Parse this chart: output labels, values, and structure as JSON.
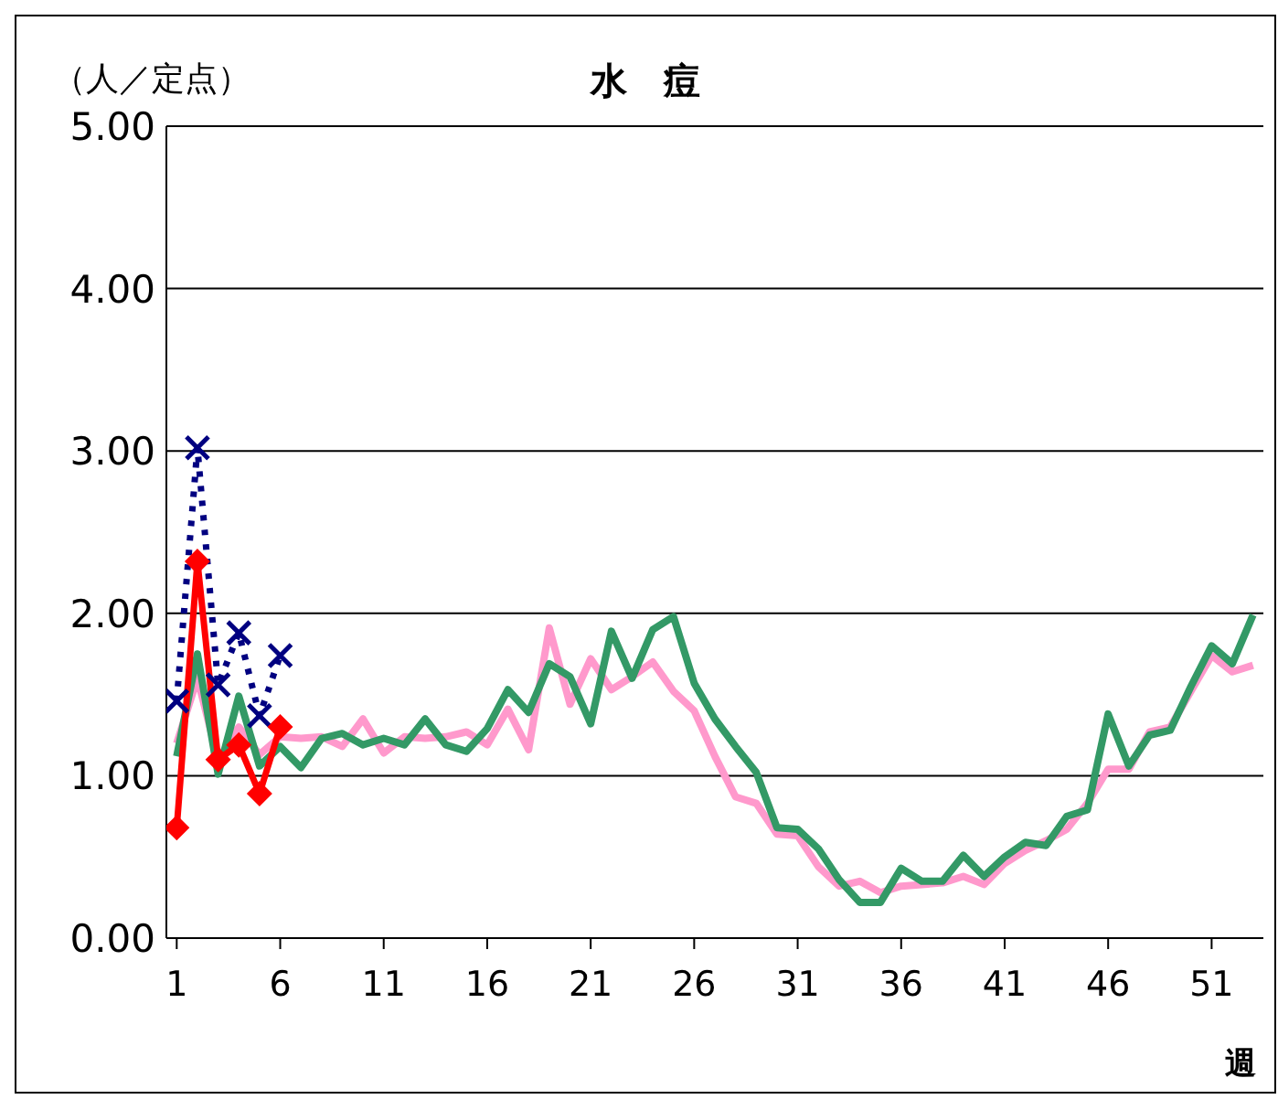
{
  "chart_data": {
    "type": "line",
    "title": "水　痘",
    "ylabel": "（人／定点）",
    "xlabel": "週",
    "x": [
      1,
      2,
      3,
      4,
      5,
      6,
      7,
      8,
      9,
      10,
      11,
      12,
      13,
      14,
      15,
      16,
      17,
      18,
      19,
      20,
      21,
      22,
      23,
      24,
      25,
      26,
      27,
      28,
      29,
      30,
      31,
      32,
      33,
      34,
      35,
      36,
      37,
      38,
      39,
      40,
      41,
      42,
      43,
      44,
      45,
      46,
      47,
      48,
      49,
      50,
      51,
      52,
      53
    ],
    "series": [
      {
        "color": "#ff99cc",
        "marker": "none",
        "values": [
          1.2,
          1.6,
          1.1,
          1.3,
          1.13,
          1.24,
          1.23,
          1.24,
          1.18,
          1.35,
          1.14,
          1.24,
          1.23,
          1.24,
          1.27,
          1.19,
          1.41,
          1.16,
          1.91,
          1.44,
          1.72,
          1.53,
          1.61,
          1.7,
          1.52,
          1.4,
          1.12,
          0.87,
          0.83,
          0.64,
          0.63,
          0.44,
          0.32,
          0.35,
          0.28,
          0.32,
          0.33,
          0.34,
          0.38,
          0.33,
          0.46,
          0.54,
          0.6,
          0.67,
          0.83,
          1.04,
          1.04,
          1.27,
          1.3,
          1.52,
          1.74,
          1.64,
          1.68
        ]
      },
      {
        "color": "#339966",
        "marker": "none",
        "values": [
          1.12,
          1.75,
          1.01,
          1.49,
          1.06,
          1.18,
          1.05,
          1.23,
          1.26,
          1.19,
          1.23,
          1.19,
          1.35,
          1.19,
          1.15,
          1.29,
          1.53,
          1.39,
          1.69,
          1.61,
          1.32,
          1.89,
          1.6,
          1.9,
          1.98,
          1.57,
          1.35,
          1.18,
          1.02,
          0.68,
          0.67,
          0.55,
          0.36,
          0.22,
          0.22,
          0.43,
          0.35,
          0.35,
          0.51,
          0.38,
          0.5,
          0.59,
          0.57,
          0.75,
          0.79,
          1.38,
          1.06,
          1.25,
          1.28,
          1.55,
          1.8,
          1.69,
          1.99
        ]
      },
      {
        "color": "#000080",
        "marker": "cross",
        "line_style": "dotted",
        "x": [
          1,
          2,
          3,
          4,
          5,
          6
        ],
        "values": [
          1.46,
          3.02,
          1.56,
          1.88,
          1.37,
          1.74
        ]
      },
      {
        "color": "#ff0000",
        "marker": "diamond",
        "x": [
          1,
          2,
          3,
          4,
          5,
          6
        ],
        "values": [
          0.68,
          2.32,
          1.1,
          1.19,
          0.89,
          1.3
        ]
      }
    ],
    "xlim": [
      0.5,
      53.5
    ],
    "xticks": [
      1,
      6,
      11,
      16,
      21,
      26,
      31,
      36,
      41,
      46,
      51
    ],
    "ylim": [
      0,
      5
    ],
    "yticks": [
      {
        "value": 0,
        "label": "0.00"
      },
      {
        "value": 1,
        "label": "1.00"
      },
      {
        "value": 2,
        "label": "2.00"
      },
      {
        "value": 3,
        "label": "3.00"
      },
      {
        "value": 4,
        "label": "4.00"
      },
      {
        "value": 5,
        "label": "5.00"
      }
    ],
    "grid": "y"
  }
}
